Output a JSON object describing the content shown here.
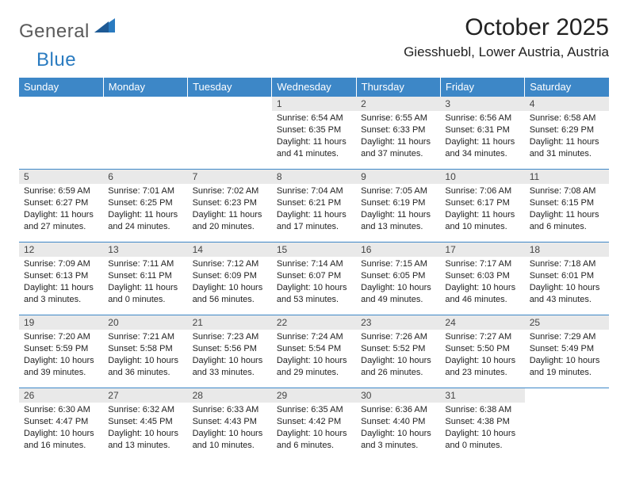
{
  "brand": {
    "part1": "General",
    "part2": "Blue"
  },
  "title": "October 2025",
  "location": "Giesshuebl, Lower Austria, Austria",
  "colors": {
    "header_bg": "#3d87c7",
    "header_fg": "#ffffff",
    "daynum_bg": "#e9e9e9",
    "rule": "#3d87c7",
    "logo_gray": "#5a5a5a",
    "logo_blue": "#2a7bc0"
  },
  "weekdays": [
    "Sunday",
    "Monday",
    "Tuesday",
    "Wednesday",
    "Thursday",
    "Friday",
    "Saturday"
  ],
  "weeks": [
    [
      {
        "empty": true
      },
      {
        "empty": true
      },
      {
        "empty": true
      },
      {
        "n": "1",
        "sr": "6:54 AM",
        "ss": "6:35 PM",
        "dl": "11 hours and 41 minutes."
      },
      {
        "n": "2",
        "sr": "6:55 AM",
        "ss": "6:33 PM",
        "dl": "11 hours and 37 minutes."
      },
      {
        "n": "3",
        "sr": "6:56 AM",
        "ss": "6:31 PM",
        "dl": "11 hours and 34 minutes."
      },
      {
        "n": "4",
        "sr": "6:58 AM",
        "ss": "6:29 PM",
        "dl": "11 hours and 31 minutes."
      }
    ],
    [
      {
        "n": "5",
        "sr": "6:59 AM",
        "ss": "6:27 PM",
        "dl": "11 hours and 27 minutes."
      },
      {
        "n": "6",
        "sr": "7:01 AM",
        "ss": "6:25 PM",
        "dl": "11 hours and 24 minutes."
      },
      {
        "n": "7",
        "sr": "7:02 AM",
        "ss": "6:23 PM",
        "dl": "11 hours and 20 minutes."
      },
      {
        "n": "8",
        "sr": "7:04 AM",
        "ss": "6:21 PM",
        "dl": "11 hours and 17 minutes."
      },
      {
        "n": "9",
        "sr": "7:05 AM",
        "ss": "6:19 PM",
        "dl": "11 hours and 13 minutes."
      },
      {
        "n": "10",
        "sr": "7:06 AM",
        "ss": "6:17 PM",
        "dl": "11 hours and 10 minutes."
      },
      {
        "n": "11",
        "sr": "7:08 AM",
        "ss": "6:15 PM",
        "dl": "11 hours and 6 minutes."
      }
    ],
    [
      {
        "n": "12",
        "sr": "7:09 AM",
        "ss": "6:13 PM",
        "dl": "11 hours and 3 minutes."
      },
      {
        "n": "13",
        "sr": "7:11 AM",
        "ss": "6:11 PM",
        "dl": "11 hours and 0 minutes."
      },
      {
        "n": "14",
        "sr": "7:12 AM",
        "ss": "6:09 PM",
        "dl": "10 hours and 56 minutes."
      },
      {
        "n": "15",
        "sr": "7:14 AM",
        "ss": "6:07 PM",
        "dl": "10 hours and 53 minutes."
      },
      {
        "n": "16",
        "sr": "7:15 AM",
        "ss": "6:05 PM",
        "dl": "10 hours and 49 minutes."
      },
      {
        "n": "17",
        "sr": "7:17 AM",
        "ss": "6:03 PM",
        "dl": "10 hours and 46 minutes."
      },
      {
        "n": "18",
        "sr": "7:18 AM",
        "ss": "6:01 PM",
        "dl": "10 hours and 43 minutes."
      }
    ],
    [
      {
        "n": "19",
        "sr": "7:20 AM",
        "ss": "5:59 PM",
        "dl": "10 hours and 39 minutes."
      },
      {
        "n": "20",
        "sr": "7:21 AM",
        "ss": "5:58 PM",
        "dl": "10 hours and 36 minutes."
      },
      {
        "n": "21",
        "sr": "7:23 AM",
        "ss": "5:56 PM",
        "dl": "10 hours and 33 minutes."
      },
      {
        "n": "22",
        "sr": "7:24 AM",
        "ss": "5:54 PM",
        "dl": "10 hours and 29 minutes."
      },
      {
        "n": "23",
        "sr": "7:26 AM",
        "ss": "5:52 PM",
        "dl": "10 hours and 26 minutes."
      },
      {
        "n": "24",
        "sr": "7:27 AM",
        "ss": "5:50 PM",
        "dl": "10 hours and 23 minutes."
      },
      {
        "n": "25",
        "sr": "7:29 AM",
        "ss": "5:49 PM",
        "dl": "10 hours and 19 minutes."
      }
    ],
    [
      {
        "n": "26",
        "sr": "6:30 AM",
        "ss": "4:47 PM",
        "dl": "10 hours and 16 minutes."
      },
      {
        "n": "27",
        "sr": "6:32 AM",
        "ss": "4:45 PM",
        "dl": "10 hours and 13 minutes."
      },
      {
        "n": "28",
        "sr": "6:33 AM",
        "ss": "4:43 PM",
        "dl": "10 hours and 10 minutes."
      },
      {
        "n": "29",
        "sr": "6:35 AM",
        "ss": "4:42 PM",
        "dl": "10 hours and 6 minutes."
      },
      {
        "n": "30",
        "sr": "6:36 AM",
        "ss": "4:40 PM",
        "dl": "10 hours and 3 minutes."
      },
      {
        "n": "31",
        "sr": "6:38 AM",
        "ss": "4:38 PM",
        "dl": "10 hours and 0 minutes."
      },
      {
        "empty": true
      }
    ]
  ],
  "labels": {
    "sunrise": "Sunrise:",
    "sunset": "Sunset:",
    "daylight": "Daylight:"
  }
}
